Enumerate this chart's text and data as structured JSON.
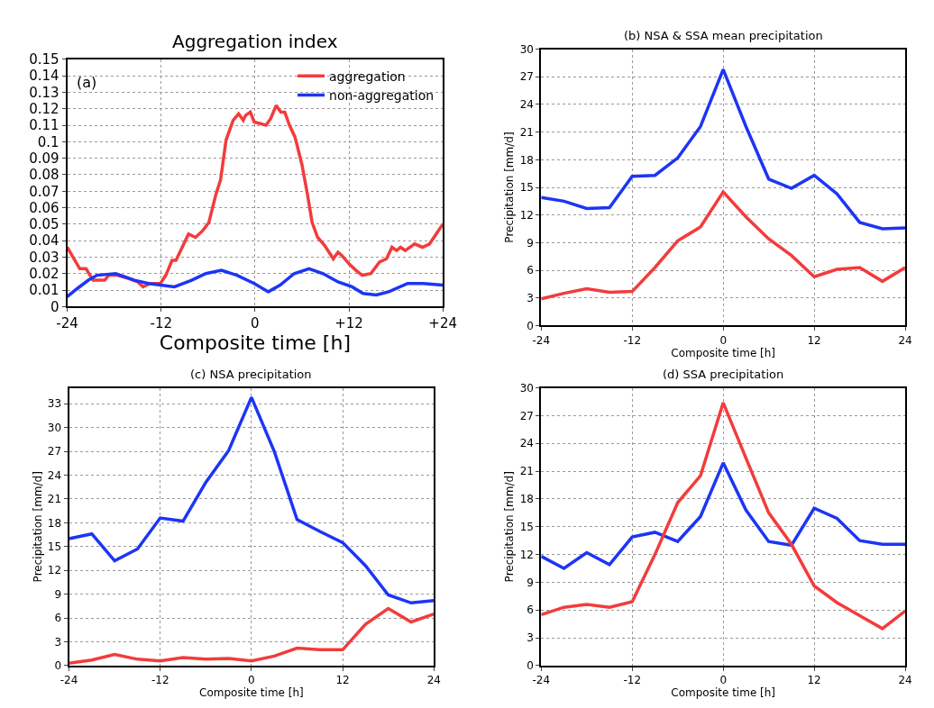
{
  "chart_data": [
    {
      "type": "line",
      "title": "Aggregation index",
      "xlabel": "Composite time [h]",
      "annotations": [
        "(a)"
      ],
      "legend": "top right",
      "grid": true,
      "line_style": "solid",
      "xlim": [
        -24,
        24
      ],
      "xticks": [
        -24,
        -12,
        0,
        {
          "value": 12,
          "label": "+12"
        },
        {
          "value": 24,
          "label": "+24"
        }
      ],
      "ylim": [
        0,
        0.15
      ],
      "yticks": [
        0,
        0.01,
        0.02,
        0.03,
        0.04,
        0.05,
        0.06,
        0.07,
        0.08,
        0.09,
        0.1,
        0.11,
        0.12,
        0.13,
        0.14,
        0.15
      ],
      "series": [
        {
          "name": "aggregation",
          "color": "#f23c3c",
          "x": [
            -24,
            -22.4,
            -21.6,
            -20.7,
            -19.2,
            -18.7,
            -17.6,
            -16.1,
            -15.0,
            -14.3,
            -13.4,
            -12.1,
            -11.4,
            -10.6,
            -10.1,
            -9.4,
            -8.5,
            -7.6,
            -6.7,
            -5.9,
            -5.0,
            -4.4,
            -3.7,
            -2.8,
            -2.1,
            -1.5,
            -1.2,
            -0.6,
            -0.1,
            0.7,
            1.4,
            2.0,
            2.7,
            3.3,
            3.8,
            4.4,
            5.1,
            6.0,
            6.7,
            7.3,
            8.0,
            8.9,
            10.0,
            10.6,
            11.1,
            12.0,
            12.9,
            13.7,
            14.8,
            15.9,
            16.8,
            17.5,
            18.1,
            18.6,
            19.2,
            20.4,
            21.4,
            22.3,
            23.0,
            24
          ],
          "values": [
            0.036,
            0.023,
            0.023,
            0.016,
            0.016,
            0.019,
            0.019,
            0.017,
            0.015,
            0.012,
            0.014,
            0.014,
            0.019,
            0.028,
            0.028,
            0.035,
            0.044,
            0.042,
            0.046,
            0.051,
            0.068,
            0.077,
            0.101,
            0.113,
            0.117,
            0.113,
            0.116,
            0.118,
            0.112,
            0.111,
            0.11,
            0.114,
            0.122,
            0.118,
            0.118,
            0.11,
            0.103,
            0.086,
            0.068,
            0.051,
            0.042,
            0.037,
            0.029,
            0.033,
            0.031,
            0.026,
            0.022,
            0.019,
            0.02,
            0.027,
            0.029,
            0.036,
            0.034,
            0.036,
            0.034,
            0.038,
            0.036,
            0.038,
            0.043,
            0.05
          ]
        },
        {
          "name": "non-aggregation",
          "color": "#1c35f5",
          "x": [
            -24,
            -22.7,
            -21.3,
            -20.2,
            -17.8,
            -15.4,
            -13.6,
            -10.3,
            -8.1,
            -6.3,
            -4.3,
            -2.3,
            -0.1,
            1.7,
            3.2,
            5.0,
            6.9,
            8.7,
            10.6,
            12.4,
            13.8,
            15.5,
            17.1,
            19.5,
            21.5,
            24
          ],
          "values": [
            0.006,
            0.011,
            0.016,
            0.019,
            0.02,
            0.016,
            0.014,
            0.012,
            0.016,
            0.02,
            0.022,
            0.019,
            0.014,
            0.009,
            0.013,
            0.02,
            0.023,
            0.02,
            0.015,
            0.012,
            0.008,
            0.007,
            0.009,
            0.014,
            0.014,
            0.013
          ]
        }
      ]
    },
    {
      "type": "line",
      "title": "(b) NSA & SSA mean precipitation",
      "xlabel": "Composite time [h]",
      "ylabel": "Precipitation [mm/d]",
      "grid": true,
      "line_style": "solid",
      "x": [
        -24,
        -21,
        -18,
        -15,
        -12,
        -9,
        -6,
        -3,
        0,
        3,
        6,
        9,
        12,
        15,
        18,
        21,
        24
      ],
      "xlim": [
        -24,
        24
      ],
      "xticks": [
        -24,
        -12,
        0,
        12,
        24
      ],
      "ylim": [
        0,
        30
      ],
      "yticks": [
        0,
        3,
        6,
        9,
        12,
        15,
        18,
        21,
        24,
        27,
        30
      ],
      "series": [
        {
          "color": "#1c35f5",
          "values": [
            13.9,
            13.5,
            12.7,
            12.8,
            16.2,
            16.3,
            18.2,
            21.6,
            27.8,
            21.6,
            15.9,
            14.9,
            16.3,
            14.3,
            11.2,
            10.5,
            10.6
          ]
        },
        {
          "color": "#f23c3c",
          "values": [
            2.9,
            3.5,
            4.0,
            3.6,
            3.7,
            6.3,
            9.2,
            10.7,
            14.5,
            11.8,
            9.4,
            7.6,
            5.3,
            6.1,
            6.3,
            4.8,
            6.3
          ]
        }
      ]
    },
    {
      "type": "line",
      "title": "(c) NSA precipitation",
      "xlabel": "Composite time [h]",
      "ylabel": "Precipitation [mm/d]",
      "grid": true,
      "line_style": "solid",
      "x": [
        -24,
        -21,
        -18,
        -15,
        -12,
        -9,
        -6,
        -3,
        0,
        3,
        6,
        9,
        12,
        15,
        18,
        21,
        24
      ],
      "xlim": [
        -24,
        24
      ],
      "xticks": [
        -24,
        -12,
        0,
        12,
        24
      ],
      "ylim": [
        0,
        35
      ],
      "yticks": [
        0,
        3,
        6,
        9,
        12,
        15,
        18,
        21,
        24,
        27,
        30,
        33
      ],
      "series": [
        {
          "color": "#1c35f5",
          "values": [
            16.0,
            16.6,
            13.2,
            14.7,
            18.6,
            18.2,
            23.1,
            27.1,
            33.8,
            27.0,
            18.4,
            16.9,
            15.5,
            12.6,
            8.9,
            7.9,
            8.2
          ]
        },
        {
          "color": "#f23c3c",
          "values": [
            0.3,
            0.7,
            1.4,
            0.8,
            0.6,
            1.0,
            0.8,
            0.9,
            0.6,
            1.2,
            2.2,
            2.0,
            2.0,
            5.2,
            7.2,
            5.5,
            6.5
          ]
        }
      ]
    },
    {
      "type": "line",
      "title": "(d) SSA precipitation",
      "xlabel": "Composite time [h]",
      "ylabel": "Precipitation [mm/d]",
      "grid": true,
      "line_style": "solid",
      "x": [
        -24,
        -21,
        -18,
        -15,
        -12,
        -9,
        -6,
        -3,
        0,
        3,
        6,
        9,
        12,
        15,
        18,
        21,
        24
      ],
      "xlim": [
        -24,
        24
      ],
      "xticks": [
        -24,
        -12,
        0,
        12,
        24
      ],
      "ylim": [
        0,
        30
      ],
      "yticks": [
        0,
        3,
        6,
        9,
        12,
        15,
        18,
        21,
        24,
        27,
        30
      ],
      "series": [
        {
          "color": "#1c35f5",
          "values": [
            11.8,
            10.5,
            12.2,
            10.9,
            13.9,
            14.4,
            13.4,
            16.1,
            21.9,
            16.8,
            13.4,
            13.0,
            17.0,
            15.9,
            13.5,
            13.1,
            13.1
          ]
        },
        {
          "color": "#f23c3c",
          "values": [
            5.5,
            6.3,
            6.6,
            6.3,
            6.9,
            12.0,
            17.6,
            20.5,
            28.4,
            22.4,
            16.5,
            13.1,
            8.6,
            6.8,
            5.4,
            4.0,
            5.9
          ]
        }
      ]
    }
  ]
}
